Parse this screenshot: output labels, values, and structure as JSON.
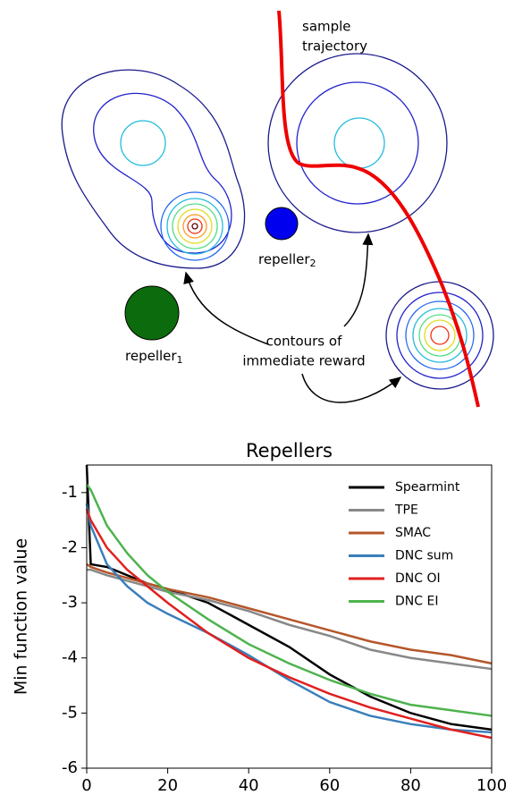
{
  "diagram": {
    "trajectory_label": [
      "sample",
      "trajectory"
    ],
    "repeller_1": {
      "text": "repeller",
      "subscript": "1"
    },
    "repeller_2": {
      "text": "repeller",
      "subscript": "2"
    },
    "contours_label": [
      "contours of",
      "immediate reward"
    ]
  },
  "chart_data": {
    "type": "line",
    "title": "Repellers",
    "y_label": "Min function value",
    "x": [
      0,
      1,
      5,
      10,
      15,
      20,
      30,
      40,
      50,
      60,
      70,
      80,
      90,
      100
    ],
    "xlim": [
      0,
      100
    ],
    "xticks": [
      0,
      20,
      40,
      60,
      80,
      100
    ],
    "ylim": [
      -6,
      -0.5
    ],
    "yticks": [
      -6,
      -5,
      -4,
      -3,
      -2,
      -1
    ],
    "legend": "upper right",
    "series": [
      {
        "name": "Spearmint",
        "color": "#000000",
        "values": [
          -0.5,
          -2.3,
          -2.35,
          -2.5,
          -2.65,
          -2.75,
          -3.0,
          -3.4,
          -3.8,
          -4.3,
          -4.7,
          -5.0,
          -5.2,
          -5.3
        ]
      },
      {
        "name": "TPE",
        "color": "#888888",
        "values": [
          -2.4,
          -2.4,
          -2.5,
          -2.6,
          -2.7,
          -2.8,
          -2.95,
          -3.15,
          -3.4,
          -3.6,
          -3.85,
          -4.0,
          -4.1,
          -4.2
        ]
      },
      {
        "name": "SMAC",
        "color": "#b5562a",
        "values": [
          -2.3,
          -2.35,
          -2.45,
          -2.55,
          -2.65,
          -2.75,
          -2.9,
          -3.1,
          -3.3,
          -3.5,
          -3.7,
          -3.85,
          -3.95,
          -4.1
        ]
      },
      {
        "name": "DNC sum",
        "color": "#3a7fba",
        "values": [
          -1.2,
          -1.6,
          -2.3,
          -2.7,
          -3.0,
          -3.2,
          -3.55,
          -3.95,
          -4.4,
          -4.8,
          -5.05,
          -5.2,
          -5.3,
          -5.35
        ]
      },
      {
        "name": "DNC OI",
        "color": "#e02020",
        "values": [
          -1.3,
          -1.5,
          -2.0,
          -2.4,
          -2.7,
          -3.0,
          -3.55,
          -4.0,
          -4.35,
          -4.65,
          -4.9,
          -5.1,
          -5.3,
          -5.45
        ]
      },
      {
        "name": "DNC EI",
        "color": "#4db34d",
        "values": [
          -0.85,
          -0.95,
          -1.6,
          -2.1,
          -2.5,
          -2.8,
          -3.3,
          -3.75,
          -4.1,
          -4.4,
          -4.65,
          -4.85,
          -4.95,
          -5.05
        ]
      }
    ]
  }
}
